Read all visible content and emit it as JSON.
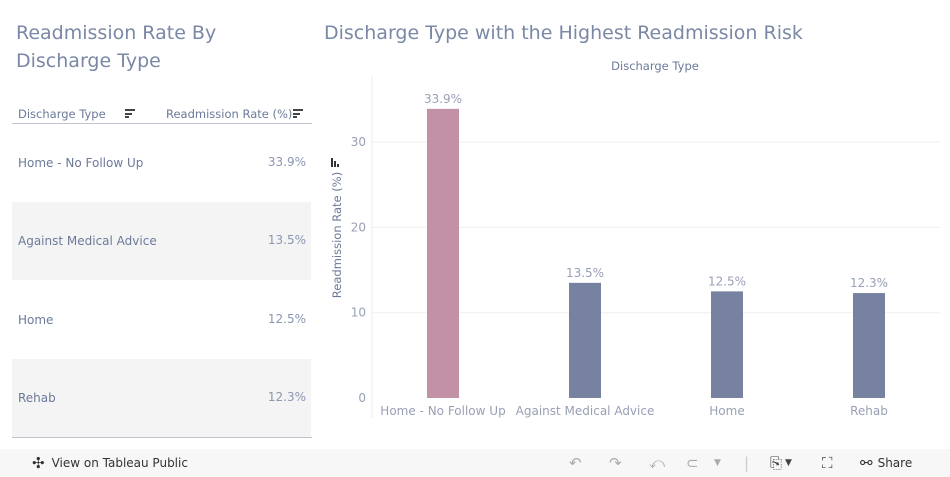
{
  "left_title": "Readmission Rate By Discharge Type",
  "right_title": "Discharge Type with the Highest Readmission Risk",
  "table": {
    "headers": [
      "Discharge Type",
      "Readmission Rate (%)"
    ],
    "rows": [
      {
        "type": "Home - No Follow Up",
        "rate": "33.9%"
      },
      {
        "type": "Against Medical Advice",
        "rate": "13.5%"
      },
      {
        "type": "Home",
        "rate": "12.5%"
      },
      {
        "type": "Rehab",
        "rate": "12.3%"
      }
    ]
  },
  "chart_data": {
    "type": "bar",
    "title": "Discharge Type",
    "xlabel": "Discharge Type",
    "ylabel": "Readmission Rate (%)",
    "categories": [
      "Home - No Follow Up",
      "Against Medical Advice",
      "Home",
      "Rehab"
    ],
    "values": [
      33.9,
      13.5,
      12.5,
      12.3
    ],
    "data_labels": [
      "33.9%",
      "13.5%",
      "12.5%",
      "12.3%"
    ],
    "ylim": [
      0,
      38
    ],
    "yticks": [
      0,
      10,
      20,
      30
    ],
    "grid": true,
    "colors": {
      "highlight": "#c291a6",
      "default": "#76829f"
    }
  },
  "toolbar": {
    "view_label": "View on Tableau Public",
    "share_label": "Share"
  }
}
